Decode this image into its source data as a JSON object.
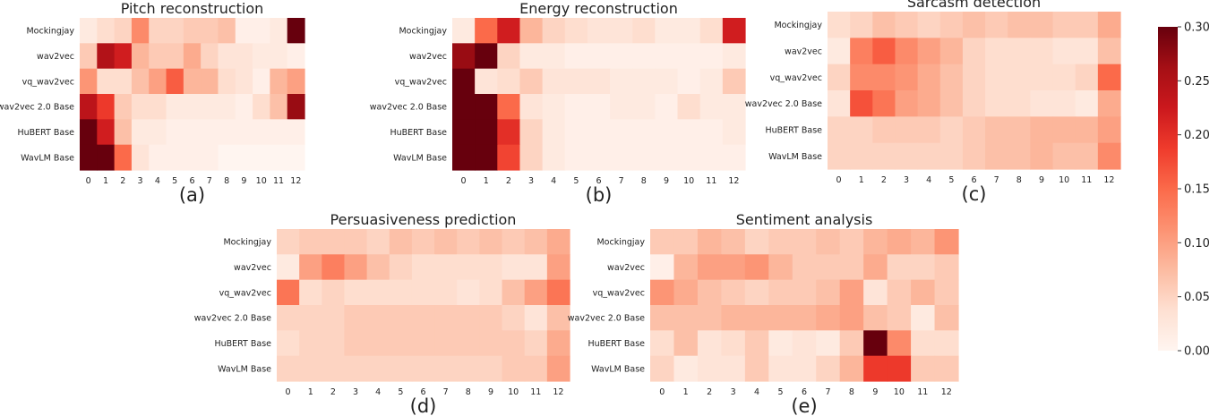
{
  "chart_data": [
    {
      "type": "heatmap",
      "title": "Pitch reconstruction",
      "panel": "(a)",
      "rows": [
        "Mockingjay",
        "wav2vec",
        "vq_wav2vec",
        "wav2vec 2.0 Base",
        "HuBERT Base",
        "WavLM Base"
      ],
      "columns": [
        "0",
        "1",
        "2",
        "3",
        "4",
        "5",
        "6",
        "7",
        "8",
        "9",
        "10",
        "11",
        "12"
      ],
      "values": [
        [
          0.02,
          0.04,
          0.05,
          0.12,
          0.05,
          0.05,
          0.06,
          0.06,
          0.07,
          0.01,
          0.01,
          0.02,
          0.3
        ],
        [
          0.06,
          0.25,
          0.22,
          0.08,
          0.06,
          0.06,
          0.09,
          0.05,
          0.03,
          0.03,
          0.02,
          0.02,
          0.01
        ],
        [
          0.11,
          0.04,
          0.04,
          0.07,
          0.1,
          0.16,
          0.08,
          0.08,
          0.04,
          0.03,
          0.01,
          0.08,
          0.1
        ],
        [
          0.24,
          0.19,
          0.06,
          0.04,
          0.04,
          0.02,
          0.02,
          0.02,
          0.02,
          0.01,
          0.04,
          0.07,
          0.27
        ],
        [
          0.3,
          0.22,
          0.07,
          0.02,
          0.02,
          0.01,
          0.01,
          0.01,
          0.01,
          0.01,
          0.01,
          0.01,
          0.01
        ],
        [
          0.3,
          0.3,
          0.15,
          0.03,
          0.01,
          0.01,
          0.01,
          0.01,
          0.0,
          0.0,
          0.0,
          0.0,
          0.0
        ]
      ]
    },
    {
      "type": "heatmap",
      "title": "Energy reconstruction",
      "panel": "(b)",
      "rows": [
        "Mockingjay",
        "wav2vec",
        "vq_wav2vec",
        "wav2vec 2.0 Base",
        "HuBERT Base",
        "WavLM Base"
      ],
      "columns": [
        "0",
        "1",
        "2",
        "3",
        "4",
        "5",
        "6",
        "7",
        "8",
        "9",
        "10",
        "11",
        "12"
      ],
      "values": [
        [
          0.02,
          0.15,
          0.22,
          0.08,
          0.05,
          0.04,
          0.03,
          0.03,
          0.04,
          0.02,
          0.02,
          0.04,
          0.22
        ],
        [
          0.27,
          0.3,
          0.05,
          0.02,
          0.02,
          0.01,
          0.01,
          0.01,
          0.01,
          0.01,
          0.01,
          0.01,
          0.02
        ],
        [
          0.3,
          0.03,
          0.04,
          0.06,
          0.03,
          0.03,
          0.03,
          0.02,
          0.02,
          0.02,
          0.01,
          0.02,
          0.06
        ],
        [
          0.3,
          0.3,
          0.15,
          0.03,
          0.02,
          0.01,
          0.01,
          0.02,
          0.02,
          0.01,
          0.04,
          0.02,
          0.02
        ],
        [
          0.3,
          0.3,
          0.2,
          0.05,
          0.02,
          0.01,
          0.01,
          0.01,
          0.01,
          0.01,
          0.01,
          0.01,
          0.02
        ],
        [
          0.3,
          0.3,
          0.18,
          0.05,
          0.02,
          0.01,
          0.01,
          0.01,
          0.01,
          0.01,
          0.01,
          0.01,
          0.01
        ]
      ]
    },
    {
      "type": "heatmap",
      "title": "Sarcasm detection",
      "panel": "(c)",
      "rows": [
        "Mockingjay",
        "wav2vec",
        "vq_wav2vec",
        "wav2vec 2.0 Base",
        "HuBERT Base",
        "WavLM Base"
      ],
      "columns": [
        "0",
        "1",
        "2",
        "3",
        "4",
        "5",
        "6",
        "7",
        "8",
        "9",
        "10",
        "11",
        "12"
      ],
      "values": [
        [
          0.04,
          0.05,
          0.07,
          0.06,
          0.05,
          0.06,
          0.07,
          0.06,
          0.07,
          0.07,
          0.06,
          0.06,
          0.09
        ],
        [
          0.02,
          0.13,
          0.16,
          0.12,
          0.1,
          0.08,
          0.05,
          0.04,
          0.04,
          0.04,
          0.03,
          0.03,
          0.07
        ],
        [
          0.05,
          0.12,
          0.12,
          0.11,
          0.09,
          0.07,
          0.05,
          0.04,
          0.04,
          0.04,
          0.04,
          0.05,
          0.15
        ],
        [
          0.03,
          0.17,
          0.14,
          0.1,
          0.09,
          0.07,
          0.05,
          0.04,
          0.04,
          0.03,
          0.03,
          0.02,
          0.09
        ],
        [
          0.05,
          0.05,
          0.06,
          0.06,
          0.06,
          0.05,
          0.06,
          0.07,
          0.07,
          0.08,
          0.08,
          0.08,
          0.1
        ],
        [
          0.05,
          0.05,
          0.05,
          0.05,
          0.05,
          0.05,
          0.06,
          0.07,
          0.07,
          0.08,
          0.07,
          0.07,
          0.12
        ]
      ]
    },
    {
      "type": "heatmap",
      "title": "Persuasiveness prediction",
      "panel": "(d)",
      "rows": [
        "Mockingjay",
        "wav2vec",
        "vq_wav2vec",
        "wav2vec 2.0 Base",
        "HuBERT Base",
        "WavLM Base"
      ],
      "columns": [
        "0",
        "1",
        "2",
        "3",
        "4",
        "5",
        "6",
        "7",
        "8",
        "9",
        "10",
        "11",
        "12"
      ],
      "values": [
        [
          0.05,
          0.06,
          0.06,
          0.06,
          0.05,
          0.07,
          0.06,
          0.07,
          0.06,
          0.07,
          0.06,
          0.07,
          0.09
        ],
        [
          0.02,
          0.1,
          0.13,
          0.1,
          0.07,
          0.05,
          0.04,
          0.04,
          0.04,
          0.04,
          0.03,
          0.03,
          0.1
        ],
        [
          0.14,
          0.04,
          0.05,
          0.04,
          0.04,
          0.04,
          0.04,
          0.04,
          0.03,
          0.04,
          0.07,
          0.1,
          0.14
        ],
        [
          0.05,
          0.05,
          0.05,
          0.06,
          0.06,
          0.06,
          0.06,
          0.06,
          0.06,
          0.06,
          0.05,
          0.03,
          0.07
        ],
        [
          0.04,
          0.05,
          0.05,
          0.06,
          0.06,
          0.06,
          0.06,
          0.06,
          0.06,
          0.06,
          0.06,
          0.05,
          0.09
        ],
        [
          0.05,
          0.05,
          0.05,
          0.05,
          0.05,
          0.05,
          0.05,
          0.05,
          0.05,
          0.05,
          0.06,
          0.06,
          0.1
        ]
      ]
    },
    {
      "type": "heatmap",
      "title": "Sentiment analysis",
      "panel": "(e)",
      "rows": [
        "Mockingjay",
        "wav2vec",
        "vq_wav2vec",
        "wav2vec 2.0 Base",
        "HuBERT Base",
        "WavLM Base"
      ],
      "columns": [
        "0",
        "1",
        "2",
        "3",
        "4",
        "5",
        "6",
        "7",
        "8",
        "9",
        "10",
        "11",
        "12"
      ],
      "values": [
        [
          0.06,
          0.06,
          0.08,
          0.07,
          0.05,
          0.06,
          0.06,
          0.07,
          0.06,
          0.08,
          0.09,
          0.08,
          0.11
        ],
        [
          0.01,
          0.08,
          0.1,
          0.1,
          0.11,
          0.08,
          0.06,
          0.06,
          0.06,
          0.09,
          0.05,
          0.05,
          0.06
        ],
        [
          0.11,
          0.09,
          0.07,
          0.06,
          0.05,
          0.06,
          0.06,
          0.07,
          0.1,
          0.03,
          0.06,
          0.08,
          0.06
        ],
        [
          0.07,
          0.07,
          0.07,
          0.08,
          0.08,
          0.08,
          0.08,
          0.09,
          0.1,
          0.07,
          0.06,
          0.02,
          0.07
        ],
        [
          0.04,
          0.07,
          0.03,
          0.04,
          0.06,
          0.02,
          0.03,
          0.02,
          0.06,
          0.3,
          0.12,
          0.04,
          0.04
        ],
        [
          0.05,
          0.02,
          0.03,
          0.03,
          0.06,
          0.03,
          0.03,
          0.05,
          0.08,
          0.19,
          0.19,
          0.06,
          0.06
        ]
      ]
    }
  ],
  "colorbar": {
    "min": 0.0,
    "max": 0.3,
    "ticks": [
      "0.00",
      "0.05",
      "0.10",
      "0.15",
      "0.20",
      "0.25",
      "0.30"
    ],
    "colors": [
      "#fff5f0",
      "#fee0d2",
      "#fcbba1",
      "#fc9272",
      "#fb6a4a",
      "#ef3b2c",
      "#cb181d",
      "#a50f15",
      "#67000d"
    ]
  }
}
